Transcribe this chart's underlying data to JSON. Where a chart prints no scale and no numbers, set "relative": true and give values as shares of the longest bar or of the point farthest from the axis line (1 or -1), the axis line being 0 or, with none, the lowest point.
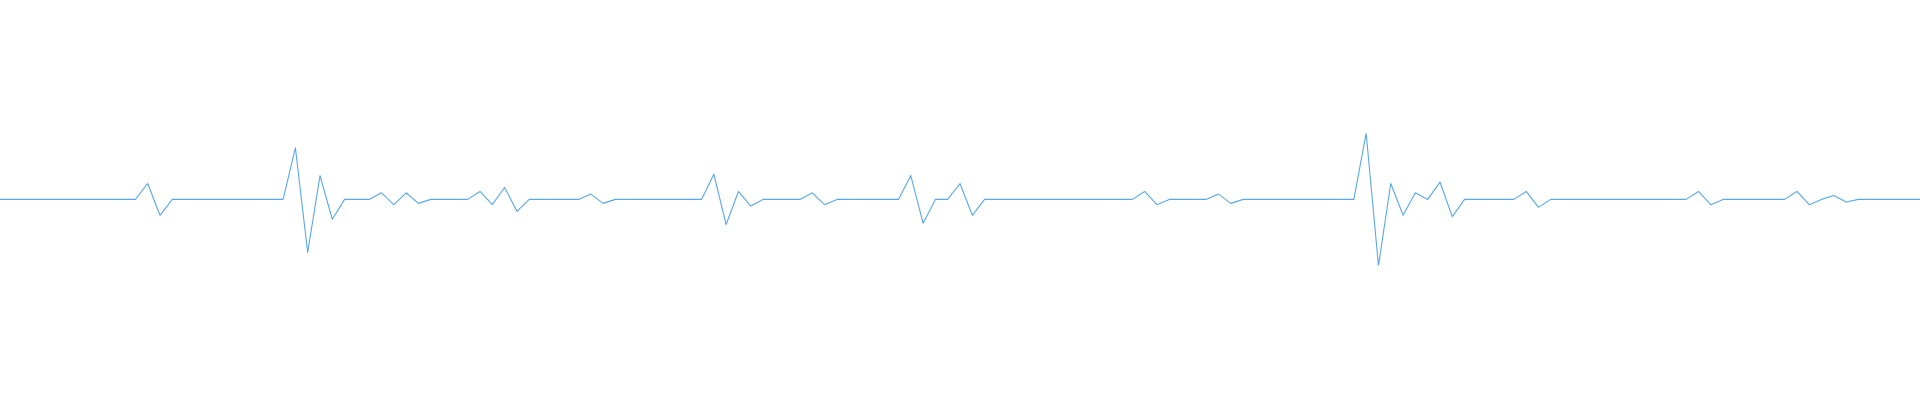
{
  "chart_data": {
    "type": "line",
    "relative": true,
    "color": "#5aa9e6",
    "categories": [
      null,
      null,
      null,
      null,
      null,
      null,
      null,
      null,
      null,
      null,
      null,
      null,
      null,
      null,
      null,
      null,
      null,
      null,
      null,
      null,
      null,
      null,
      null,
      null,
      null,
      null,
      null,
      null,
      null,
      null,
      null,
      null,
      null,
      null,
      null,
      null,
      null,
      null,
      null,
      null,
      null,
      null,
      null,
      null,
      null,
      null,
      null,
      null,
      null,
      null,
      null,
      null,
      null,
      null,
      null,
      null,
      null,
      null,
      null,
      null,
      null,
      null,
      null,
      null,
      null,
      null,
      null,
      null,
      null,
      null,
      null,
      null,
      null,
      null,
      null,
      null,
      null,
      null,
      null,
      null,
      null,
      null,
      null,
      null,
      null,
      null,
      null,
      null,
      null,
      null,
      null,
      null,
      null,
      null,
      null,
      null,
      null,
      null,
      null,
      null,
      null,
      null,
      null,
      null,
      null,
      null,
      null,
      null,
      null,
      null,
      null,
      null,
      null,
      null,
      null,
      null,
      null,
      null,
      null,
      null,
      null,
      null,
      null,
      null,
      null,
      null,
      null,
      null,
      null,
      null,
      null,
      null,
      null,
      null,
      null,
      null,
      null,
      null,
      null,
      null,
      null,
      null,
      null,
      null,
      null,
      null,
      null,
      null,
      null,
      null,
      null,
      null,
      null,
      null,
      null,
      null,
      null
    ],
    "values": [
      0.5,
      0.5,
      0.5,
      0.5,
      0.5,
      0.5,
      0.5,
      0.5,
      0.5,
      0.5,
      0.5,
      0.5,
      0.62,
      0.38,
      0.5,
      0.5,
      0.5,
      0.5,
      0.5,
      0.5,
      0.5,
      0.5,
      0.5,
      0.5,
      0.89,
      0.1,
      0.68,
      0.35,
      0.5,
      0.5,
      0.5,
      0.55,
      0.46,
      0.55,
      0.47,
      0.5,
      0.5,
      0.5,
      0.5,
      0.56,
      0.46,
      0.59,
      0.41,
      0.5,
      0.5,
      0.5,
      0.5,
      0.5,
      0.54,
      0.47,
      0.5,
      0.5,
      0.5,
      0.5,
      0.5,
      0.5,
      0.5,
      0.5,
      0.69,
      0.31,
      0.56,
      0.45,
      0.5,
      0.5,
      0.5,
      0.5,
      0.55,
      0.46,
      0.5,
      0.5,
      0.5,
      0.5,
      0.5,
      0.5,
      0.68,
      0.32,
      0.5,
      0.5,
      0.62,
      0.38,
      0.5,
      0.5,
      0.5,
      0.5,
      0.5,
      0.5,
      0.5,
      0.5,
      0.5,
      0.5,
      0.5,
      0.5,
      0.5,
      0.56,
      0.46,
      0.5,
      0.5,
      0.5,
      0.5,
      0.54,
      0.47,
      0.5,
      0.5,
      0.5,
      0.5,
      0.5,
      0.5,
      0.5,
      0.5,
      0.5,
      0.5,
      1.0,
      0.0,
      0.62,
      0.38,
      0.55,
      0.5,
      0.63,
      0.37,
      0.5,
      0.5,
      0.5,
      0.5,
      0.5,
      0.56,
      0.44,
      0.5,
      0.5,
      0.5,
      0.5,
      0.5,
      0.5,
      0.5,
      0.5,
      0.5,
      0.5,
      0.5,
      0.5,
      0.56,
      0.46,
      0.5,
      0.5,
      0.5,
      0.5,
      0.5,
      0.5,
      0.56,
      0.46,
      0.5,
      0.53,
      0.48,
      0.5,
      0.5,
      0.5,
      0.5,
      0.5,
      0.5
    ]
  }
}
